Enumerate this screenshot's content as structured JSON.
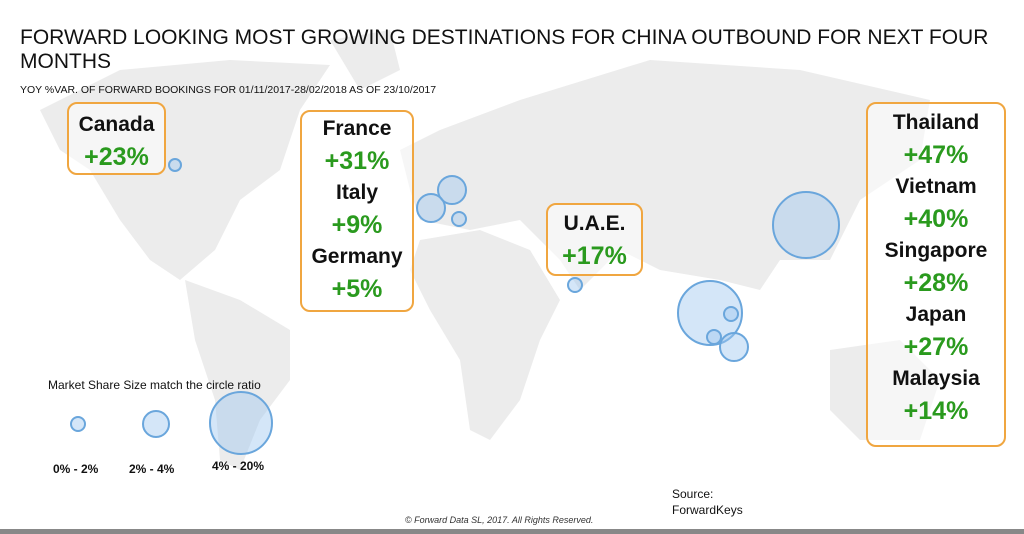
{
  "title": "FORWARD LOOKING MOST GROWING DESTINATIONS FOR CHINA OUTBOUND FOR NEXT FOUR MONTHS",
  "subtitle": "YOY %VAR. OF FORWARD BOOKINGS FOR 01/11/2017-28/02/2018 AS OF 23/10/2017",
  "colors": {
    "box_border": "#f0a640",
    "growth_text": "#2a9a1e",
    "circle": "#6aa6dc",
    "land": "#ececec"
  },
  "boxes": {
    "canada": [
      {
        "name": "Canada",
        "value": "+23%"
      }
    ],
    "europe": [
      {
        "name": "France",
        "value": "+31%"
      },
      {
        "name": "Italy",
        "value": "+9%"
      },
      {
        "name": "Germany",
        "value": "+5%"
      }
    ],
    "uae": [
      {
        "name": "U.A.E.",
        "value": "+17%"
      }
    ],
    "asia": [
      {
        "name": "Thailand",
        "value": "+47%"
      },
      {
        "name": "Vietnam",
        "value": "+40%"
      },
      {
        "name": "Singapore",
        "value": "+28%"
      },
      {
        "name": "Japan",
        "value": "+27%"
      },
      {
        "name": "Malaysia",
        "value": "+14%"
      }
    ]
  },
  "legend": {
    "text": "Market Share Size match the circle ratio",
    "sizes": [
      "0% - 2%",
      "2% - 4%",
      "4% - 20%"
    ]
  },
  "source": {
    "label": "Source:",
    "name": "ForwardKeys"
  },
  "copyright": "© Forward Data SL, 2017. All Rights Reserved."
}
